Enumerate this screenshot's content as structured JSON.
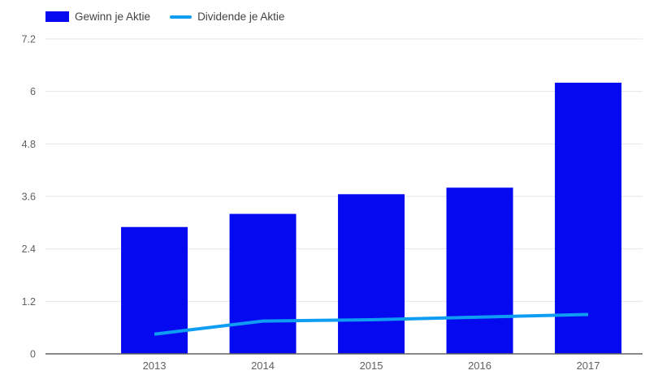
{
  "legend": {
    "items": [
      {
        "label": "Gewinn je Aktie",
        "type": "bar",
        "color": "#0409f0"
      },
      {
        "label": "Dividende je Aktie",
        "type": "line",
        "color": "#0e9df2"
      }
    ]
  },
  "chart_data": {
    "type": "bar",
    "categories": [
      "2013",
      "2014",
      "2015",
      "2016",
      "2017"
    ],
    "series": [
      {
        "name": "Gewinn je Aktie",
        "type": "bar",
        "color": "#0409f0",
        "values": [
          2.9,
          3.2,
          3.65,
          3.8,
          6.2
        ]
      },
      {
        "name": "Dividende je Aktie",
        "type": "line",
        "color": "#0e9df2",
        "values": [
          0.45,
          0.75,
          0.78,
          0.84,
          0.9
        ]
      }
    ],
    "title": "",
    "xlabel": "",
    "ylabel": "",
    "ylim": [
      0,
      7.2
    ],
    "yticks": [
      0,
      1.2,
      2.4,
      3.6,
      4.8,
      6,
      7.2
    ],
    "ytick_labels": [
      "0",
      "1.2",
      "2.4",
      "3.6",
      "4.8",
      "6",
      "7.2"
    ],
    "grid": true,
    "legend_position": "top-left"
  },
  "colors": {
    "background": "#ffffff",
    "grid": "#e6e6e6",
    "axis_line": "#616161",
    "tick_text": "#616161",
    "legend_text": "#424242"
  }
}
